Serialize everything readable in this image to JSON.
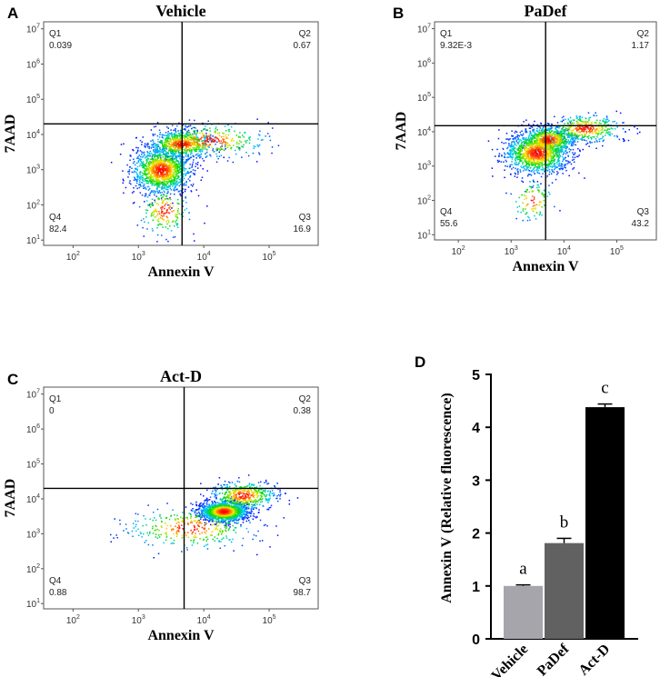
{
  "chart_data": [
    {
      "panel": "A",
      "type": "scatter",
      "title": "Vehicle",
      "xlabel": "Annexin V",
      "ylabel": "7AAD",
      "scale": "log",
      "x_ticks": [
        "10^2",
        "10^3",
        "10^4",
        "10^5"
      ],
      "y_ticks": [
        "10^1",
        "10^2",
        "10^3",
        "10^4",
        "10^5",
        "10^6",
        "10^7"
      ],
      "gate": {
        "x": 4650,
        "y": 20000
      },
      "quadrants": [
        {
          "name": "Q1",
          "value": "0.039"
        },
        {
          "name": "Q2",
          "value": "0.67"
        },
        {
          "name": "Q3",
          "value": "16.9"
        },
        {
          "name": "Q4",
          "value": "82.4"
        }
      ],
      "clusters": [
        {
          "x": 2200,
          "y": 1000,
          "sx": 0.22,
          "sy": 0.32,
          "n": 1300
        },
        {
          "x": 4500,
          "y": 5500,
          "sx": 0.25,
          "sy": 0.18,
          "n": 700
        },
        {
          "x": 12000,
          "y": 7000,
          "sx": 0.45,
          "sy": 0.25,
          "n": 350
        },
        {
          "x": 2500,
          "y": 70,
          "sx": 0.2,
          "sy": 0.35,
          "n": 200
        }
      ]
    },
    {
      "panel": "B",
      "type": "scatter",
      "title": "PaDef",
      "xlabel": "Annexin V",
      "ylabel": "7AAD",
      "scale": "log",
      "x_ticks": [
        "10^2",
        "10^3",
        "10^4",
        "10^5"
      ],
      "y_ticks": [
        "10^1",
        "10^2",
        "10^3",
        "10^4",
        "10^5",
        "10^6",
        "10^7"
      ],
      "gate": {
        "x": 4500,
        "y": 15000
      },
      "quadrants": [
        {
          "name": "Q1",
          "value": "9.32E-3"
        },
        {
          "name": "Q2",
          "value": "1.17"
        },
        {
          "name": "Q3",
          "value": "43.2"
        },
        {
          "name": "Q4",
          "value": "55.6"
        }
      ],
      "clusters": [
        {
          "x": 3000,
          "y": 2500,
          "sx": 0.3,
          "sy": 0.3,
          "n": 1300
        },
        {
          "x": 5000,
          "y": 6000,
          "sx": 0.25,
          "sy": 0.2,
          "n": 700
        },
        {
          "x": 25000,
          "y": 13000,
          "sx": 0.35,
          "sy": 0.2,
          "n": 400
        },
        {
          "x": 2500,
          "y": 100,
          "sx": 0.2,
          "sy": 0.3,
          "n": 100
        }
      ]
    },
    {
      "panel": "C",
      "type": "scatter",
      "title": "Act-D",
      "xlabel": "Annexin V",
      "ylabel": "7AAD",
      "scale": "log",
      "x_ticks": [
        "10^2",
        "10^3",
        "10^4",
        "10^5"
      ],
      "y_ticks": [
        "10^1",
        "10^2",
        "10^3",
        "10^4",
        "10^5",
        "10^6",
        "10^7"
      ],
      "gate": {
        "x": 5000,
        "y": 20000
      },
      "quadrants": [
        {
          "name": "Q1",
          "value": "0"
        },
        {
          "name": "Q2",
          "value": "0.38"
        },
        {
          "name": "Q3",
          "value": "98.7"
        },
        {
          "name": "Q4",
          "value": "0.88"
        }
      ],
      "clusters": [
        {
          "x": 20000,
          "y": 4500,
          "sx": 0.18,
          "sy": 0.14,
          "n": 1400
        },
        {
          "x": 40000,
          "y": 13000,
          "sx": 0.25,
          "sy": 0.2,
          "n": 500
        },
        {
          "x": 6000,
          "y": 1500,
          "sx": 0.5,
          "sy": 0.3,
          "n": 350
        }
      ]
    },
    {
      "panel": "D",
      "type": "bar",
      "categories": [
        "Vehicle",
        "PaDef",
        "Act-D"
      ],
      "values": [
        1.0,
        1.81,
        4.38
      ],
      "errors": [
        0.02,
        0.09,
        0.06
      ],
      "significance": [
        "a",
        "b",
        "c"
      ],
      "colors": [
        "#a5a5ab",
        "#616161",
        "#000000"
      ],
      "ylabel": "Annexin V (Relative fluorescence)",
      "ylim": [
        0,
        5
      ],
      "yticks": [
        "0",
        "1",
        "2",
        "3",
        "4",
        "5"
      ]
    }
  ]
}
